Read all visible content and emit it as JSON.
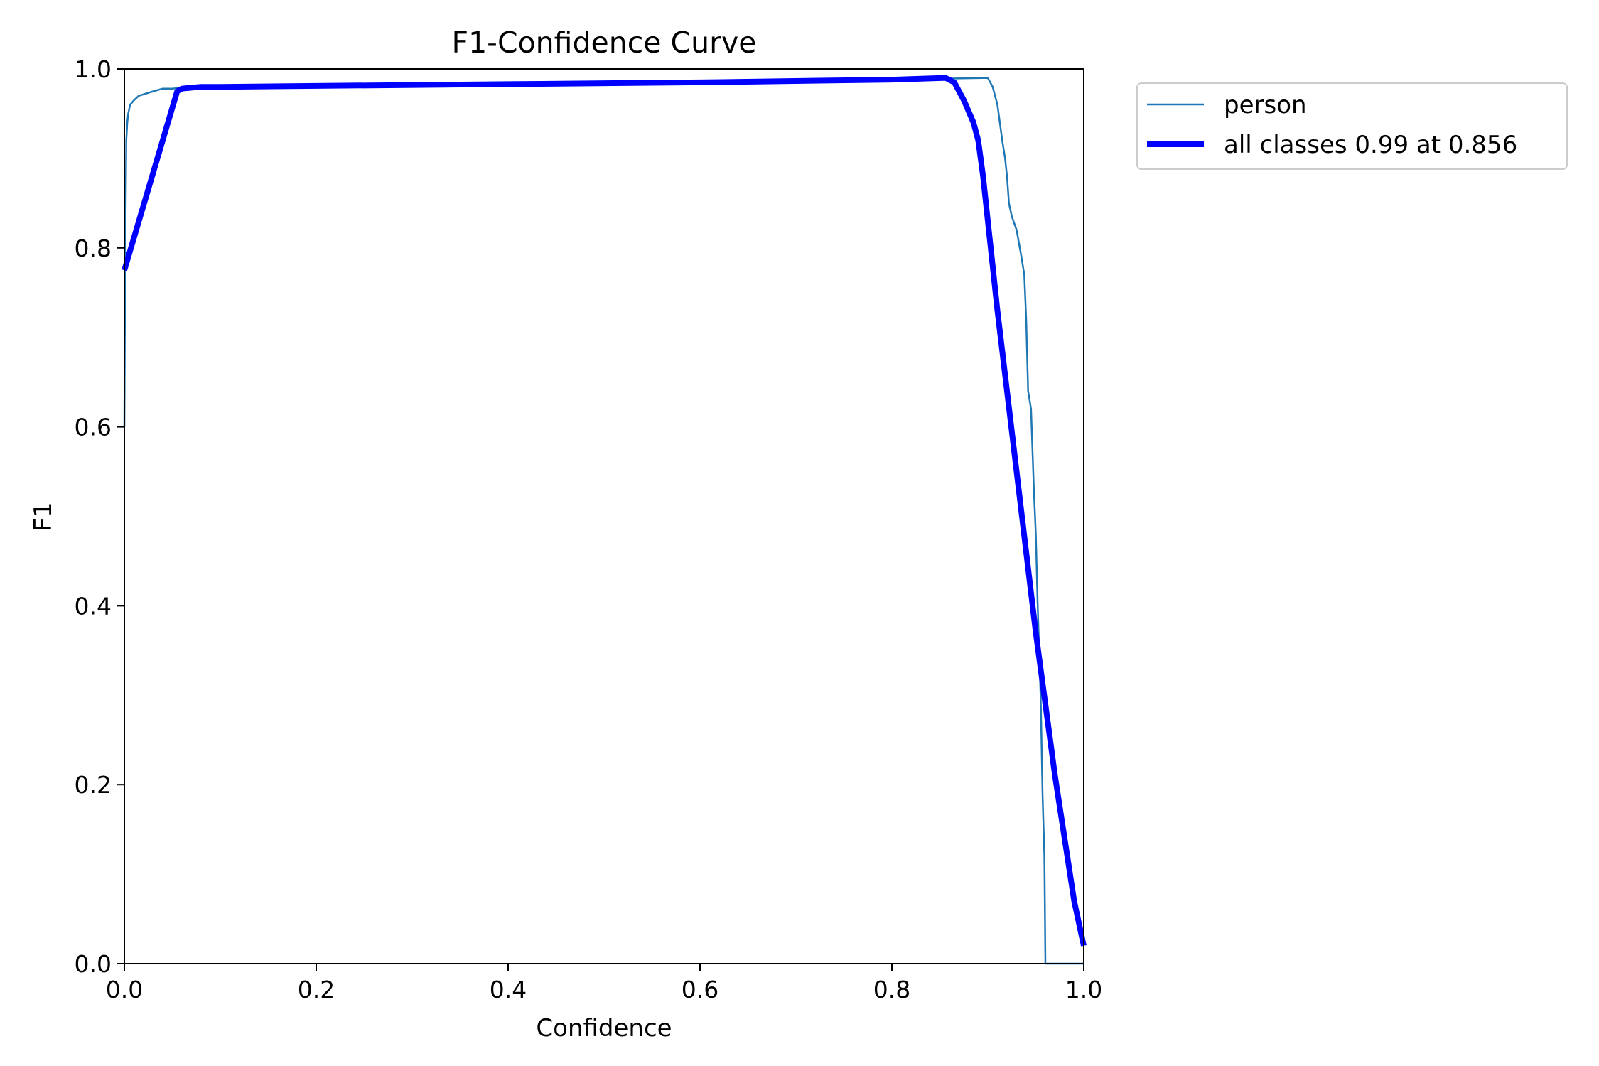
{
  "chart_data": {
    "type": "line",
    "title": "F1-Confidence Curve",
    "xlabel": "Confidence",
    "ylabel": "F1",
    "xlim": [
      0.0,
      1.0
    ],
    "ylim": [
      0.0,
      1.0
    ],
    "xticks": [
      "0.0",
      "0.2",
      "0.4",
      "0.6",
      "0.8",
      "1.0"
    ],
    "yticks": [
      "0.0",
      "0.2",
      "0.4",
      "0.6",
      "0.8",
      "1.0"
    ],
    "grid": false,
    "legend_position": "outside-top-right",
    "series": [
      {
        "name": "person",
        "color": "#1f77b4",
        "x": [
          0.0,
          0.001,
          0.002,
          0.003,
          0.004,
          0.006,
          0.01,
          0.015,
          0.03,
          0.04,
          0.05,
          0.07,
          0.1,
          0.2,
          0.4,
          0.6,
          0.8,
          0.85,
          0.9,
          0.905,
          0.91,
          0.915,
          0.918,
          0.92,
          0.922,
          0.925,
          0.93,
          0.935,
          0.938,
          0.94,
          0.942,
          0.945,
          0.948,
          0.95,
          0.952,
          0.955,
          0.957,
          0.959,
          0.96,
          0.962,
          0.965,
          0.97,
          0.98,
          1.0
        ],
        "y": [
          0.6,
          0.8,
          0.92,
          0.94,
          0.95,
          0.96,
          0.965,
          0.97,
          0.975,
          0.978,
          0.978,
          0.98,
          0.981,
          0.982,
          0.984,
          0.986,
          0.988,
          0.989,
          0.99,
          0.98,
          0.96,
          0.92,
          0.9,
          0.88,
          0.85,
          0.835,
          0.82,
          0.79,
          0.77,
          0.72,
          0.64,
          0.62,
          0.53,
          0.48,
          0.4,
          0.3,
          0.19,
          0.12,
          0.0,
          0.0,
          0.0,
          0.0,
          0.0,
          0.0
        ]
      },
      {
        "name": "all classes 0.99 at 0.856",
        "color": "#0000ff",
        "x": [
          0.0,
          0.055,
          0.06,
          0.07,
          0.08,
          0.1,
          0.2,
          0.4,
          0.6,
          0.8,
          0.856,
          0.865,
          0.875,
          0.885,
          0.89,
          0.895,
          0.9,
          0.905,
          0.91,
          0.92,
          0.93,
          0.94,
          0.95,
          0.96,
          0.97,
          0.98,
          0.99,
          1.0
        ],
        "y": [
          0.775,
          0.975,
          0.978,
          0.979,
          0.98,
          0.98,
          0.981,
          0.983,
          0.985,
          0.988,
          0.99,
          0.985,
          0.965,
          0.94,
          0.92,
          0.88,
          0.83,
          0.78,
          0.73,
          0.64,
          0.55,
          0.46,
          0.37,
          0.29,
          0.21,
          0.14,
          0.07,
          0.02
        ]
      }
    ]
  }
}
